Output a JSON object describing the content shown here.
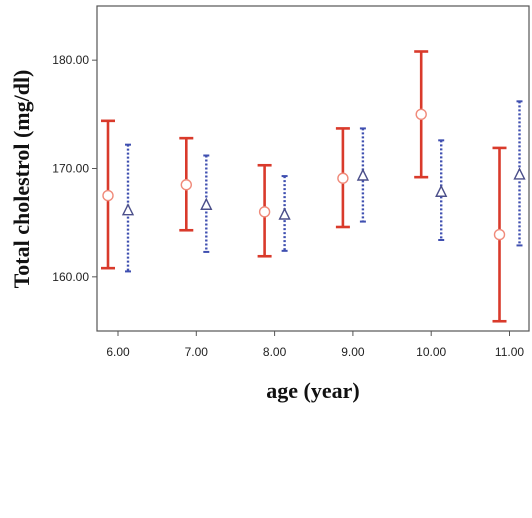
{
  "chart_data": {
    "type": "errorbar",
    "xlabel": "age (year)",
    "ylabel": "Total cholestrol (mg/dl)",
    "x_ticks": [
      "6.00",
      "7.00",
      "8.00",
      "9.00",
      "10.00",
      "11.00"
    ],
    "x": [
      6,
      7,
      8,
      9,
      10,
      11
    ],
    "y_ticks": [
      "160.00",
      "170.00",
      "180.00"
    ],
    "ylim": [
      155,
      185
    ],
    "grid": false,
    "series": [
      {
        "marker": "circle",
        "line_style": "solid",
        "color": "#d93a2b",
        "mean": [
          167.5,
          168.5,
          166.0,
          169.1,
          175.0,
          163.9
        ],
        "lower": [
          160.8,
          164.3,
          161.9,
          164.6,
          169.2,
          155.9
        ],
        "upper": [
          174.4,
          172.8,
          170.3,
          173.7,
          180.8,
          171.9
        ]
      },
      {
        "marker": "triangle",
        "line_style": "dotted",
        "color": "#3f4fb0",
        "mean": [
          166.2,
          166.7,
          165.8,
          169.4,
          167.9,
          169.5
        ],
        "lower": [
          160.5,
          162.3,
          162.4,
          165.1,
          163.4,
          162.9
        ],
        "upper": [
          172.2,
          171.2,
          169.3,
          173.7,
          172.6,
          176.2
        ]
      }
    ]
  }
}
